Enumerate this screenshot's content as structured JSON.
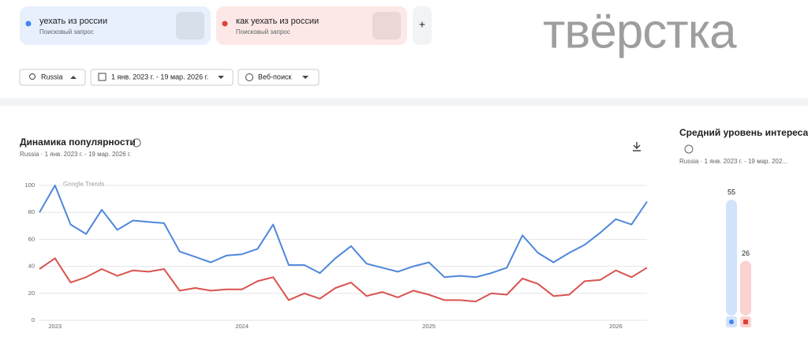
{
  "search_terms": [
    {
      "term": "уехать из россии",
      "type": "Поисковый запрос",
      "color": "#4285f4"
    },
    {
      "term": "как уехать из россии",
      "type": "Поисковый запрос",
      "color": "#db4437"
    }
  ],
  "add_button": "+",
  "logo": "твёрстка",
  "filters": [
    "Russia",
    "1 янв. 2023 г. - 19 мар. 2026 г.",
    "Веб-поиск"
  ],
  "chart_data": [
    {
      "type": "line",
      "title": "Динамика популярности",
      "subtitle": "Russia · 1 янв. 2023 г. - 19 мар. 2026 г.",
      "watermark": "Google Trends",
      "categories": [
        null,
        "2023",
        null,
        null,
        null,
        null,
        null,
        null,
        null,
        null,
        null,
        null,
        null,
        "2024",
        null,
        null,
        null,
        null,
        null,
        null,
        null,
        null,
        null,
        null,
        null,
        "2025",
        null,
        null,
        null,
        null,
        null,
        null,
        null,
        null,
        null,
        null,
        null,
        "2026",
        null,
        null
      ],
      "series": [
        {
          "color": "#4f87db",
          "values": [
            80,
            100,
            71,
            64,
            82,
            67,
            74,
            73,
            72,
            51,
            47,
            43,
            48,
            49,
            53,
            71,
            41,
            41,
            35,
            46,
            55,
            42,
            39,
            36,
            40,
            43,
            32,
            33,
            32,
            35,
            39,
            63,
            50,
            43,
            50,
            56,
            65,
            75,
            71,
            88
          ]
        },
        {
          "color": "#d9534f",
          "values": [
            38,
            46,
            28,
            32,
            38,
            33,
            37,
            36,
            38,
            22,
            24,
            22,
            23,
            23,
            29,
            32,
            15,
            20,
            16,
            24,
            28,
            18,
            21,
            17,
            22,
            19,
            15,
            15,
            14,
            20,
            19,
            31,
            27,
            18,
            19,
            29,
            30,
            37,
            32,
            39
          ]
        }
      ],
      "ylim": [
        0,
        100
      ],
      "yticks": [
        0,
        20,
        40,
        60,
        80,
        100
      ],
      "grid": true
    },
    {
      "type": "bar",
      "title": "Средний уровень интереса",
      "subtitle": "Russia · 1 янв. 2023 г. - 19 мар. 202...",
      "values": [
        55,
        26
      ],
      "colors": [
        "#d2e3fc",
        "#fad2cf"
      ],
      "marker_colors": [
        "#4285f4",
        "#db4437"
      ],
      "ylim": [
        0,
        100
      ]
    }
  ]
}
